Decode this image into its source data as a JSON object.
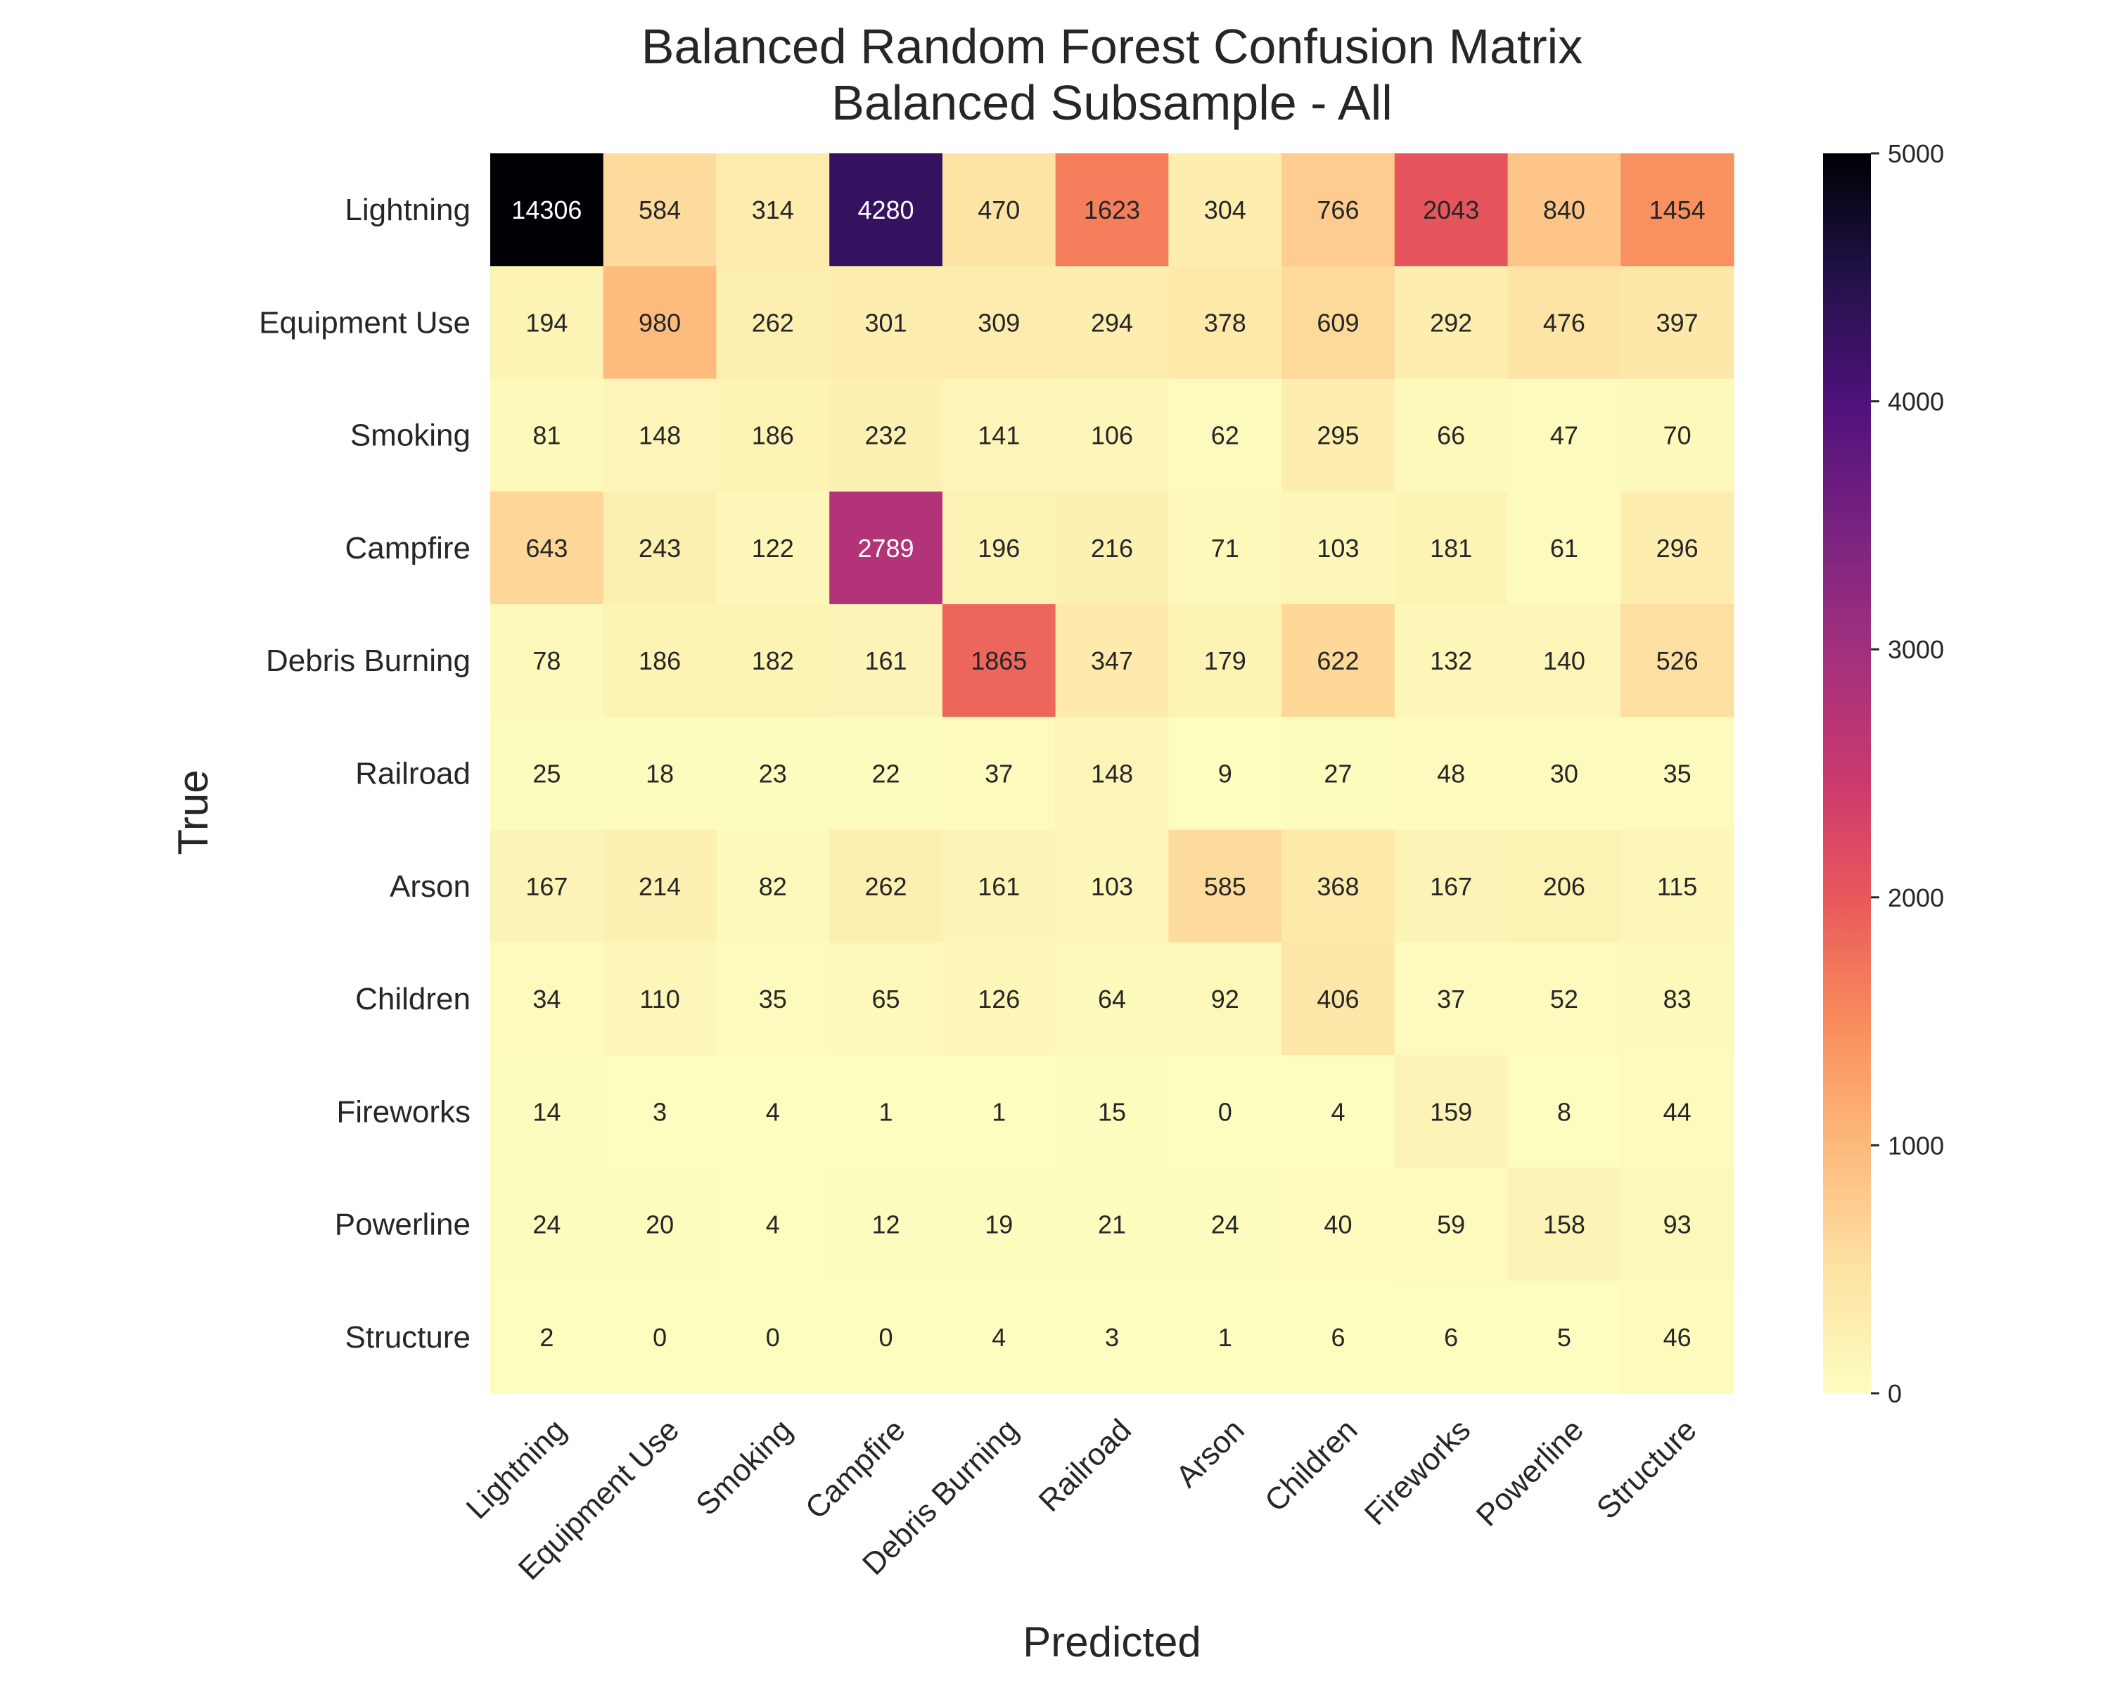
{
  "chart_data": {
    "type": "heatmap",
    "title": [
      "Balanced Random Forest Confusion Matrix",
      "Balanced Subsample - All"
    ],
    "xlabel": "Predicted",
    "ylabel": "True",
    "row_labels": [
      "Lightning",
      "Equipment Use",
      "Smoking",
      "Campfire",
      "Debris Burning",
      "Railroad",
      "Arson",
      "Children",
      "Fireworks",
      "Powerline",
      "Structure"
    ],
    "col_labels": [
      "Lightning",
      "Equipment Use",
      "Smoking",
      "Campfire",
      "Debris Burning",
      "Railroad",
      "Arson",
      "Children",
      "Fireworks",
      "Powerline",
      "Structure"
    ],
    "values": [
      [
        14306,
        584,
        314,
        4280,
        470,
        1623,
        304,
        766,
        2043,
        840,
        1454
      ],
      [
        194,
        980,
        262,
        301,
        309,
        294,
        378,
        609,
        292,
        476,
        397
      ],
      [
        81,
        148,
        186,
        232,
        141,
        106,
        62,
        295,
        66,
        47,
        70
      ],
      [
        643,
        243,
        122,
        2789,
        196,
        216,
        71,
        103,
        181,
        61,
        296
      ],
      [
        78,
        186,
        182,
        161,
        1865,
        347,
        179,
        622,
        132,
        140,
        526
      ],
      [
        25,
        18,
        23,
        22,
        37,
        148,
        9,
        27,
        48,
        30,
        35
      ],
      [
        167,
        214,
        82,
        262,
        161,
        103,
        585,
        368,
        167,
        206,
        115
      ],
      [
        34,
        110,
        35,
        65,
        126,
        64,
        92,
        406,
        37,
        52,
        83
      ],
      [
        14,
        3,
        4,
        1,
        1,
        15,
        0,
        4,
        159,
        8,
        44
      ],
      [
        24,
        20,
        4,
        12,
        19,
        21,
        24,
        40,
        59,
        158,
        93
      ],
      [
        2,
        0,
        0,
        0,
        4,
        3,
        1,
        6,
        6,
        5,
        46
      ]
    ],
    "colormap": "magma_r",
    "vmin": 0,
    "vmax": 5000,
    "colorbar_ticks": [
      0,
      1000,
      2000,
      3000,
      4000,
      5000
    ]
  }
}
